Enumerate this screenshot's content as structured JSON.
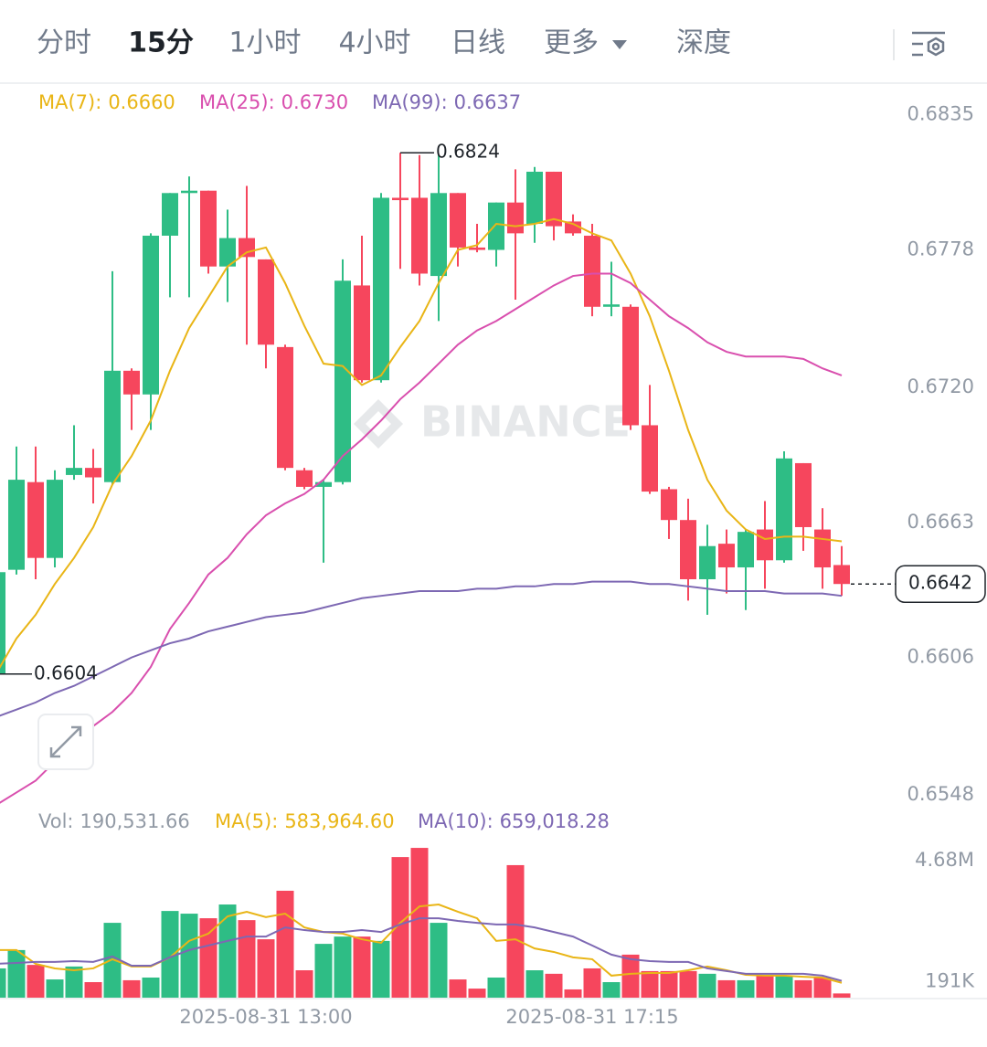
{
  "tabs": [
    "分时",
    "15分",
    "1小时",
    "4小时",
    "日线",
    "更多",
    "深度"
  ],
  "active_tab": 1,
  "watermark": "BINANCE",
  "chart_data": [
    {
      "type": "candlestick",
      "categories": [
        null,
        null,
        null,
        null,
        null,
        null,
        null,
        null,
        null,
        null,
        null,
        null,
        null,
        null,
        "2025-08-31 13:00",
        null,
        null,
        null,
        null,
        null,
        null,
        null,
        null,
        null,
        null,
        null,
        null,
        null,
        null,
        null,
        null,
        "2025-08-31 17:15",
        null,
        null,
        null,
        null,
        null,
        null,
        null,
        null,
        null,
        null,
        null,
        null,
        null
      ],
      "open": [
        0.6604,
        0.6648,
        0.6685,
        0.6653,
        0.6688,
        0.6691,
        0.6685,
        0.6732,
        0.6722,
        0.6789,
        0.6807,
        0.6808,
        0.6776,
        0.6788,
        0.6779,
        0.6742,
        0.669,
        0.6683,
        0.6685,
        0.6768,
        0.6728,
        0.6805,
        0.6805,
        0.6772,
        0.6807,
        0.6784,
        0.6783,
        0.6803,
        0.6794,
        0.6816,
        0.6795,
        0.6789,
        0.6759,
        0.6759,
        0.6709,
        0.6682,
        0.6669,
        0.6644,
        0.6659,
        0.6649,
        0.6665,
        0.6652,
        0.6693,
        0.6665,
        0.665
      ],
      "high": [
        0.6649,
        0.67,
        0.67,
        0.669,
        0.6709,
        0.6699,
        0.6774,
        0.6733,
        0.679,
        0.6807,
        0.6814,
        0.6808,
        0.68,
        0.681,
        0.6779,
        0.6743,
        0.6691,
        0.6686,
        0.6779,
        0.6789,
        0.6807,
        0.6824,
        0.6823,
        0.6823,
        0.6807,
        0.6794,
        0.6803,
        0.6817,
        0.6818,
        0.6816,
        0.6798,
        0.6794,
        0.6778,
        0.676,
        0.6726,
        0.6683,
        0.6678,
        0.6667,
        0.6665,
        0.6665,
        0.6677,
        0.6698,
        0.6693,
        0.6674,
        0.6658
      ],
      "low": [
        0.6604,
        0.6646,
        0.6644,
        0.6649,
        0.6686,
        0.6676,
        0.6684,
        0.6707,
        0.6707,
        0.6763,
        0.6763,
        0.6773,
        0.6761,
        0.6743,
        0.6733,
        0.669,
        0.6682,
        0.6651,
        0.6684,
        0.6727,
        0.6727,
        0.6775,
        0.6768,
        0.6753,
        0.6776,
        0.6782,
        0.6776,
        0.6762,
        0.6786,
        0.6787,
        0.6789,
        0.6755,
        0.6755,
        0.6707,
        0.668,
        0.6661,
        0.6635,
        0.6629,
        0.6638,
        0.6631,
        0.664,
        0.6651,
        0.6656,
        0.664,
        0.6637
      ],
      "close": [
        0.6647,
        0.6686,
        0.6653,
        0.6686,
        0.6691,
        0.6687,
        0.6732,
        0.6722,
        0.6789,
        0.6807,
        0.6808,
        0.6776,
        0.6788,
        0.678,
        0.6743,
        0.6691,
        0.6683,
        0.6685,
        0.677,
        0.6728,
        0.6805,
        0.6804,
        0.6773,
        0.6807,
        0.6784,
        0.6783,
        0.6803,
        0.679,
        0.6816,
        0.6793,
        0.679,
        0.6759,
        0.676,
        0.6709,
        0.6681,
        0.6669,
        0.6644,
        0.6658,
        0.6649,
        0.6664,
        0.6652,
        0.6695,
        0.6666,
        0.6649,
        0.6642
      ],
      "up_color": "#2ebd85",
      "down_color": "#f6465d",
      "lines": [
        {
          "name": "MA(7):",
          "color": "#e9b516",
          "current": {
            "value": 0.666,
            "label": "0.6660"
          },
          "values": [
            0.6605,
            0.6619,
            0.6629,
            0.6642,
            0.6653,
            0.6666,
            0.6684,
            0.6696,
            0.6711,
            0.6732,
            0.675,
            0.6763,
            0.6776,
            0.6782,
            0.6784,
            0.6769,
            0.6751,
            0.6735,
            0.6734,
            0.6726,
            0.673,
            0.6742,
            0.6753,
            0.6769,
            0.6783,
            0.6785,
            0.6794,
            0.6793,
            0.6794,
            0.6796,
            0.6794,
            0.679,
            0.6787,
            0.6773,
            0.6755,
            0.6732,
            0.6707,
            0.6686,
            0.6673,
            0.6665,
            0.6661,
            0.6662,
            0.6662,
            0.6661,
            0.666
          ]
        },
        {
          "name": "MA(25):",
          "color": "#d94fae",
          "current": {
            "value": 0.673,
            "label": "0.6730"
          },
          "values": [
            0.6549,
            0.6554,
            0.6559,
            0.6567,
            0.6574,
            0.6582,
            0.6588,
            0.6596,
            0.6607,
            0.6623,
            0.6634,
            0.6646,
            0.6653,
            0.6663,
            0.6671,
            0.6676,
            0.668,
            0.6686,
            0.6696,
            0.6703,
            0.6711,
            0.672,
            0.6727,
            0.6735,
            0.6743,
            0.6749,
            0.6753,
            0.6758,
            0.6763,
            0.6768,
            0.6772,
            0.6773,
            0.6773,
            0.6769,
            0.6762,
            0.6755,
            0.675,
            0.6744,
            0.674,
            0.6738,
            0.6738,
            0.6738,
            0.6737,
            0.6733,
            0.673
          ]
        },
        {
          "name": "MA(99):",
          "color": "#7d68b3",
          "current": 0.6637,
          "values": [
            0.6586,
            0.6589,
            0.6592,
            0.6596,
            0.6599,
            0.6603,
            0.6607,
            0.6611,
            0.6614,
            0.6617,
            0.6619,
            0.6622,
            0.6624,
            0.6626,
            0.6628,
            0.6629,
            0.663,
            0.6632,
            0.6634,
            0.6636,
            0.6637,
            0.6638,
            0.6639,
            0.6639,
            0.6639,
            0.664,
            0.664,
            0.6641,
            0.6641,
            0.6642,
            0.6642,
            0.6643,
            0.6643,
            0.6643,
            0.6642,
            0.6642,
            0.6641,
            0.664,
            0.6639,
            0.6639,
            0.6639,
            0.6638,
            0.6638,
            0.6638,
            0.6637
          ]
        }
      ],
      "markers": {
        "high": 0.6824,
        "low": 0.6604,
        "last": 0.6642
      },
      "ylim": [
        0.6548,
        0.6853
      ],
      "yticks": [
        0.6835,
        0.6778,
        {
          "value": 0.672,
          "label": "0.6720"
        },
        0.6663,
        0.6606,
        0.6548
      ],
      "grid": true
    },
    {
      "type": "bar",
      "name": "Vol:",
      "current": {
        "value": 190531.66,
        "label": "190,531.66"
      },
      "values": [
        1120000,
        1800000,
        1250000,
        710000,
        1190000,
        610000,
        2810000,
        680000,
        780000,
        3250000,
        3150000,
        2980000,
        3490000,
        2910000,
        2200000,
        4000000,
        1050000,
        2030000,
        2300000,
        2300000,
        2140000,
        5250000,
        5590000,
        2810000,
        710000,
        370000,
        780000,
        4950000,
        1050000,
        920000,
        340000,
        1120000,
        610000,
        1630000,
        1020000,
        1020000,
        1020000,
        920000,
        680000,
        680000,
        850000,
        850000,
        680000,
        780000,
        190531.66
      ],
      "lines": [
        {
          "name": "MA(5):",
          "color": "#e9b516",
          "current": {
            "value": 583964.6,
            "label": "583,964.60"
          },
          "values": [
            1800000,
            1800000,
            1290000,
            1120000,
            1050000,
            1120000,
            1460000,
            1190000,
            1190000,
            1530000,
            2140000,
            2410000,
            3050000,
            3220000,
            3020000,
            3150000,
            2640000,
            2470000,
            2410000,
            2200000,
            2070000,
            2810000,
            3420000,
            3490000,
            3220000,
            2980000,
            2140000,
            2200000,
            1860000,
            1730000,
            1530000,
            1460000,
            850000,
            920000,
            950000,
            950000,
            1050000,
            1190000,
            1050000,
            880000,
            850000,
            850000,
            810000,
            780000,
            583964.6
          ]
        },
        {
          "name": "MA(10):",
          "color": "#7d68b3",
          "current": {
            "value": 659018.28,
            "label": "659,018.28"
          },
          "values": [
            1290000,
            1320000,
            1360000,
            1360000,
            1390000,
            1360000,
            1560000,
            1220000,
            1220000,
            1530000,
            1800000,
            1970000,
            2140000,
            2300000,
            2300000,
            2640000,
            2540000,
            2470000,
            2470000,
            2540000,
            2470000,
            2750000,
            2980000,
            2980000,
            2880000,
            2810000,
            2750000,
            2750000,
            2640000,
            2470000,
            2300000,
            1970000,
            1630000,
            1460000,
            1390000,
            1360000,
            1360000,
            1120000,
            1020000,
            920000,
            920000,
            920000,
            920000,
            850000,
            659018.28
          ]
        }
      ],
      "ylim": [
        0,
        6880000
      ],
      "yticks": [
        {
          "value": 4680000,
          "label": "4.68M"
        },
        {
          "value": 191000,
          "label": "191K"
        }
      ]
    }
  ]
}
